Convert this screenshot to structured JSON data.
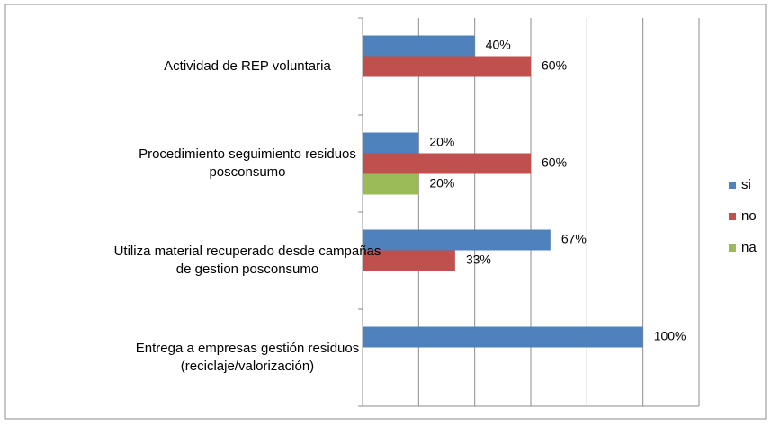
{
  "chart_data": {
    "type": "bar",
    "orientation": "horizontal",
    "categories": [
      "Actividad de REP voluntaria",
      "Procedimiento  seguimiento  residuos\nposconsumo",
      "Utiliza  material recuperado  desde campañas\nde gestion posconsumo",
      "Entrega a empresas gestión residuos\n(reciclaje/valorización)"
    ],
    "series": [
      {
        "name": "si",
        "color": "#4f81bd",
        "values": [
          40,
          20,
          67,
          100
        ],
        "value_labels": [
          "40%",
          "20%",
          "67%",
          "100%"
        ]
      },
      {
        "name": "no",
        "color": "#c0504d",
        "values": [
          60,
          60,
          33,
          null
        ],
        "value_labels": [
          "60%",
          "60%",
          "33%",
          null
        ]
      },
      {
        "name": "na",
        "color": "#9bbb59",
        "values": [
          null,
          20,
          null,
          null
        ],
        "value_labels": [
          null,
          "20%",
          null,
          null
        ]
      }
    ],
    "xlim": [
      0,
      120
    ],
    "xticks": [
      0,
      20,
      40,
      60,
      80,
      100,
      120
    ],
    "grid": true,
    "legend": "right"
  }
}
